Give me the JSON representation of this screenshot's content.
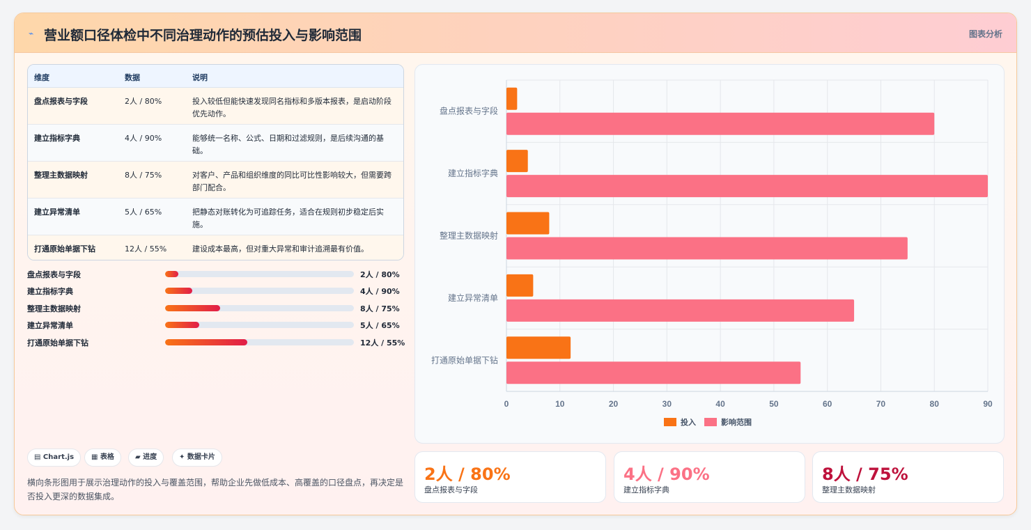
{
  "header": {
    "icon": "line-chart-icon",
    "title": "营业额口径体检中不同治理动作的预估投入与影响范围",
    "tag": "图表分析"
  },
  "table": {
    "headers": [
      "维度",
      "数据",
      "说明"
    ],
    "rows": [
      {
        "name": "盘点报表与字段",
        "value": "2人 / 80%",
        "note": "投入较低但能快速发现同名指标和多版本报表，是启动阶段优先动作。"
      },
      {
        "name": "建立指标字典",
        "value": "4人 / 90%",
        "note": "能够统一名称、公式、日期和过滤规则，是后续沟通的基础。"
      },
      {
        "name": "整理主数据映射",
        "value": "8人 / 75%",
        "note": "对客户、产品和组织维度的同比可比性影响较大，但需要跨部门配合。"
      },
      {
        "name": "建立异常清单",
        "value": "5人 / 65%",
        "note": "把静态对账转化为可追踪任务，适合在规则初步稳定后实施。"
      },
      {
        "name": "打通原始单据下钻",
        "value": "12人 / 55%",
        "note": "建设成本最高，但对重大异常和审计追溯最有价值。"
      }
    ]
  },
  "progress": [
    {
      "label": "盘点报表与字段",
      "value": "2人 / 80%",
      "fraction": 0.07
    },
    {
      "label": "建立指标字典",
      "value": "4人 / 90%",
      "fraction": 0.145
    },
    {
      "label": "整理主数据映射",
      "value": "8人 / 75%",
      "fraction": 0.29
    },
    {
      "label": "建立异常清单",
      "value": "5人 / 65%",
      "fraction": 0.18
    },
    {
      "label": "打通原始单据下钻",
      "value": "12人 / 55%",
      "fraction": 0.435
    }
  ],
  "chips": [
    "▤ Chart.js",
    "▦ 表格",
    "▰ 进度",
    "✦ 数据卡片"
  ],
  "description": "横向条形图用于展示治理动作的投入与覆盖范围，帮助企业先做低成本、高覆盖的口径盘点，再决定是否投入更深的数据集成。",
  "stats": [
    {
      "value": "2人 / 80%",
      "label": "盘点报表与字段",
      "color": "#f97316"
    },
    {
      "value": "4人 / 90%",
      "label": "建立指标字典",
      "color": "#fb7185"
    },
    {
      "value": "8人 / 75%",
      "label": "整理主数据映射",
      "color": "#be123c"
    }
  ],
  "chart_data": {
    "type": "bar",
    "orientation": "horizontal",
    "categories": [
      "盘点报表与字段",
      "建立指标字典",
      "整理主数据映射",
      "建立异常清单",
      "打通原始单据下钻"
    ],
    "series": [
      {
        "name": "投入",
        "values": [
          2,
          4,
          8,
          5,
          12
        ],
        "color": "#f97316"
      },
      {
        "name": "影响范围",
        "values": [
          80,
          90,
          75,
          65,
          55
        ],
        "color": "#fb7185"
      }
    ],
    "xlim": [
      0,
      90
    ],
    "xticks": [
      0,
      10,
      20,
      30,
      40,
      50,
      60,
      70,
      80,
      90
    ],
    "grid": true,
    "legend": "bottom"
  }
}
